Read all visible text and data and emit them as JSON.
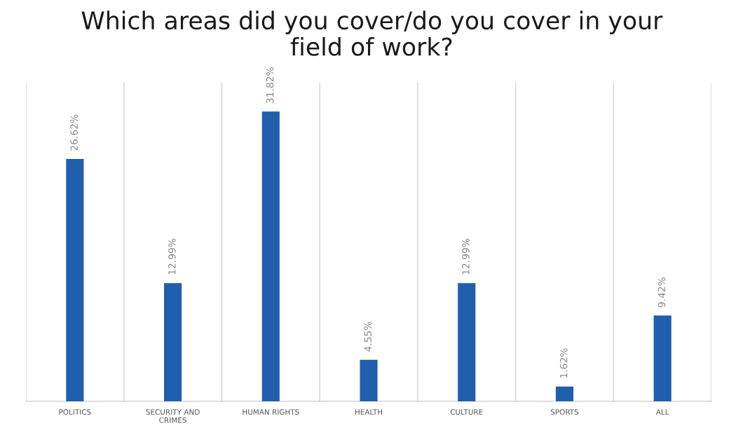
{
  "chart_data": {
    "type": "bar",
    "title": "Which areas did you cover/do you cover in your\nfield of work?",
    "categories": [
      "POLITICS",
      "SECURITY AND\nCRIMES",
      "HUMAN RIGHTS",
      "HEALTH",
      "CULTURE",
      "SPORTS",
      "ALL"
    ],
    "values": [
      26.62,
      12.99,
      31.82,
      4.55,
      12.99,
      1.62,
      9.42
    ],
    "value_labels": [
      "26.62%",
      "12.99%",
      "31.82%",
      "4.55%",
      "12.99%",
      "1.62%",
      "9.42%"
    ],
    "color": "#1f5fad",
    "grid": "x"
  }
}
